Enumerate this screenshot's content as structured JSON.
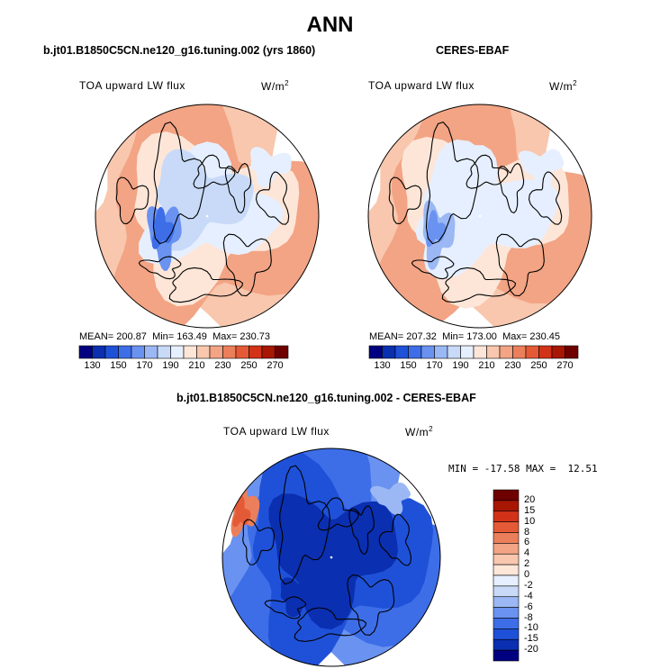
{
  "page_title": "ANN",
  "colors": {
    "scale": [
      "#000080",
      "#0a2fb0",
      "#1f51d8",
      "#3d6ee8",
      "#6a92f0",
      "#9bb8f4",
      "#c8daf8",
      "#e6efff",
      "#fde6d8",
      "#f8c7ae",
      "#f2a484",
      "#ec7f5b",
      "#e55a36",
      "#d23318",
      "#a81604",
      "#6e0000"
    ],
    "land": "#000000"
  },
  "chart_data": [
    {
      "type": "heatmap",
      "projection": "north polar stereographic",
      "title": "b.jt01.B1850C5CN.ne120_g16.tuning.002 (yrs 1860)",
      "variable": "TOA upward LW flux",
      "units_base": "W/m",
      "units_exp": "2",
      "stats": {
        "mean_label": "MEAN=",
        "mean": "200.87",
        "min_label": "Min=",
        "min": "163.49",
        "max_label": "Max=",
        "max": "230.73"
      },
      "colorbar_levels": [
        "130",
        "150",
        "170",
        "190",
        "210",
        "230",
        "250",
        "270"
      ]
    },
    {
      "type": "heatmap",
      "projection": "north polar stereographic",
      "title": "CERES-EBAF",
      "variable": "TOA upward LW flux",
      "units_base": "W/m",
      "units_exp": "2",
      "stats": {
        "mean_label": "MEAN=",
        "mean": "207.32",
        "min_label": "Min=",
        "min": "173.00",
        "max_label": "Max=",
        "max": "230.45"
      },
      "colorbar_levels": [
        "130",
        "150",
        "170",
        "190",
        "210",
        "230",
        "250",
        "270"
      ]
    },
    {
      "type": "heatmap",
      "projection": "north polar stereographic",
      "title": "b.jt01.B1850C5CN.ne120_g16.tuning.002 - CERES-EBAF",
      "variable": "TOA upward LW flux",
      "units_base": "W/m",
      "units_exp": "2",
      "stats_text": "MIN = -17.58 MAX =  12.51",
      "colorbar_levels": [
        "20",
        "15",
        "10",
        "8",
        "6",
        "4",
        "2",
        "0",
        "-2",
        "-4",
        "-6",
        "-8",
        "-10",
        "-15",
        "-20"
      ]
    }
  ]
}
